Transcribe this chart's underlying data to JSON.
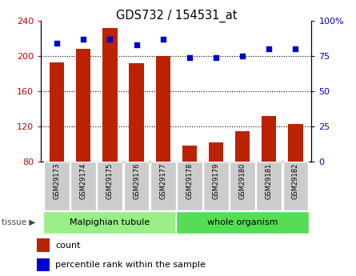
{
  "title": "GDS732 / 154531_at",
  "samples": [
    "GSM29173",
    "GSM29174",
    "GSM29175",
    "GSM29176",
    "GSM29177",
    "GSM29178",
    "GSM29179",
    "GSM29180",
    "GSM29181",
    "GSM29182"
  ],
  "counts": [
    193,
    208,
    232,
    192,
    200,
    98,
    102,
    114,
    132,
    123
  ],
  "percentile": [
    84,
    87,
    87,
    83,
    87,
    74,
    74,
    75,
    80,
    80
  ],
  "bar_color": "#bb2200",
  "dot_color": "#0000cc",
  "ylim_left": [
    80,
    240
  ],
  "yticks_left": [
    80,
    120,
    160,
    200,
    240
  ],
  "ylim_right": [
    0,
    100
  ],
  "yticks_right": [
    0,
    25,
    50,
    75,
    100
  ],
  "ytick_labels_right": [
    "0",
    "25",
    "50",
    "75",
    "100%"
  ],
  "groups": [
    {
      "label": "Malpighian tubule",
      "start": 0,
      "end": 5,
      "color": "#99ee88"
    },
    {
      "label": "whole organism",
      "start": 5,
      "end": 10,
      "color": "#55dd55"
    }
  ],
  "tissue_label": "tissue",
  "legend_count_label": "count",
  "legend_pct_label": "percentile rank within the sample",
  "tick_label_color_left": "#cc0000",
  "tick_label_color_right": "#0000cc",
  "background_plot": "#ffffff",
  "background_xtick": "#cccccc",
  "bar_width": 0.55
}
